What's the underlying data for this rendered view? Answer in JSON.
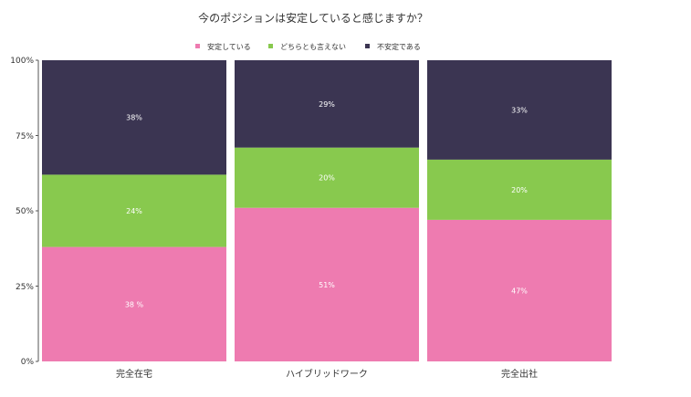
{
  "chart_data": {
    "type": "bar",
    "stacked": true,
    "percent": true,
    "title": "今のポジションは安定していると感じますか？",
    "categories": [
      "完全在宅",
      "ハイブリッドワーク",
      "完全出社"
    ],
    "series": [
      {
        "name": "安定している",
        "values": [
          38,
          51,
          47
        ],
        "labels": [
          "38 %",
          "51%",
          "47%"
        ],
        "color": "#ee7bb0"
      },
      {
        "name": "どちらとも言えない",
        "values": [
          24,
          20,
          20
        ],
        "labels": [
          "24%",
          "20%",
          "20%"
        ],
        "color": "#88c94e"
      },
      {
        "name": "不安定である",
        "values": [
          38,
          29,
          33
        ],
        "labels": [
          "38%",
          "29%",
          "33%"
        ],
        "color": "#3b3552"
      }
    ],
    "yticks": [
      "0%",
      "25%",
      "50%",
      "75%",
      "100%"
    ],
    "ylim": [
      0,
      100
    ],
    "legend_position": "top-center",
    "grid": false
  }
}
